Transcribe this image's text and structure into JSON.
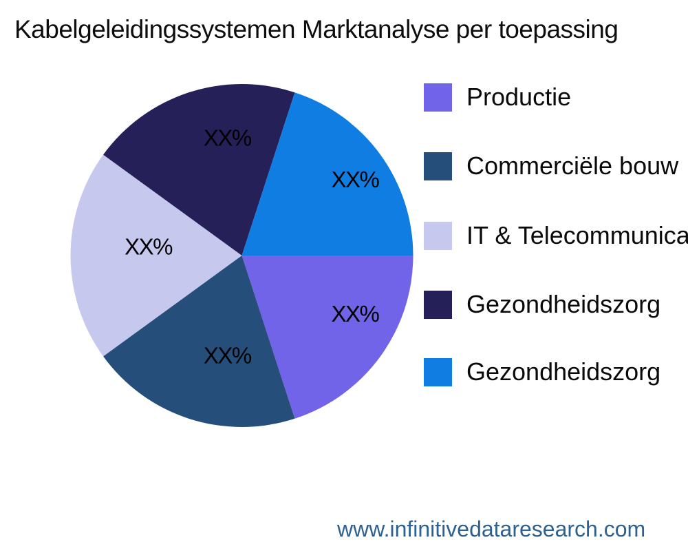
{
  "title": "Kabelgeleidingssystemen Marktanalyse per toepassing",
  "footer": {
    "url": "www.infinitivedataresearch.com"
  },
  "chart_data": {
    "type": "pie",
    "title": "Kabelgeleidingssystemen Marktanalyse per toepassing",
    "legend_position": "right",
    "start_angle_deg": 0,
    "direction": "clockwise",
    "value_labels_masked": true,
    "slices": [
      {
        "label": "Productie",
        "value": 20,
        "display_value": "XX%",
        "color": "#7164e8"
      },
      {
        "label": "Commerciële bouw",
        "value": 20,
        "display_value": "XX%",
        "color": "#254e7b"
      },
      {
        "label": "IT & Telecommunicatie",
        "value": 20,
        "display_value": "XX%",
        "color": "#c7c8ee"
      },
      {
        "label": "Gezondheidszorg",
        "value": 20,
        "display_value": "XX%",
        "color": "#252057"
      },
      {
        "label": "Gezondheidszorg",
        "value": 20,
        "display_value": "XX%",
        "color": "#107de2"
      }
    ]
  }
}
